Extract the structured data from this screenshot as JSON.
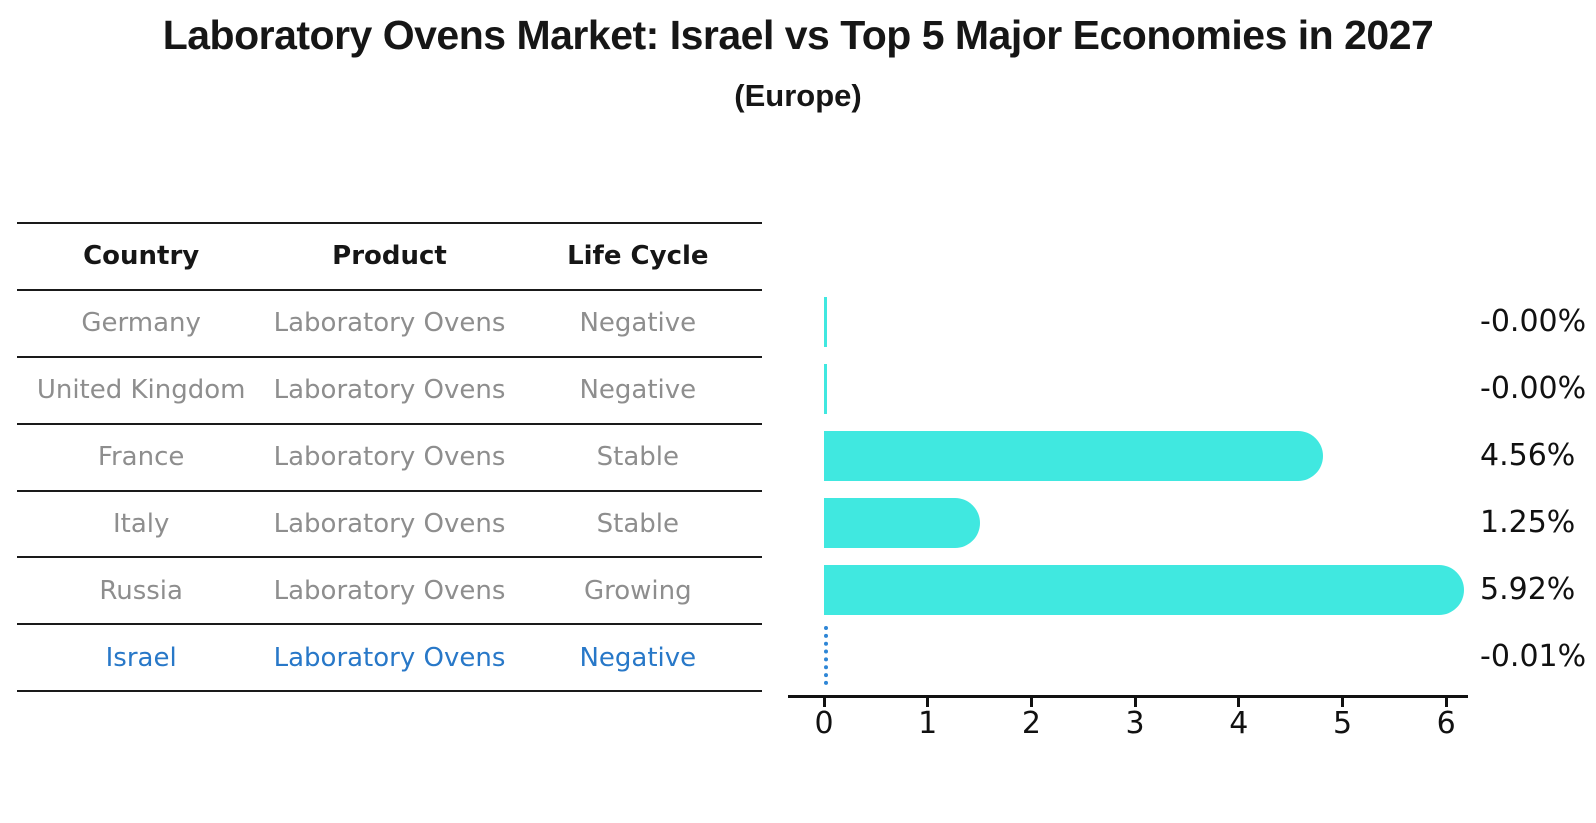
{
  "title": "Laboratory Ovens Market: Israel vs Top 5 Major Economies in 2027",
  "subtitle": "(Europe)",
  "colors": {
    "bar": "#40e8e0",
    "highlight_blue": "#2878c8",
    "table_text_gray": "#8e8e8e",
    "text_black": "#161616"
  },
  "table": {
    "headers": [
      "Country",
      "Product",
      "Life Cycle"
    ],
    "rows": [
      {
        "country": "Germany",
        "product": "Laboratory Ovens",
        "life_cycle": "Negative",
        "highlight": false
      },
      {
        "country": "United Kingdom",
        "product": "Laboratory Ovens",
        "life_cycle": "Negative",
        "highlight": false
      },
      {
        "country": "France",
        "product": "Laboratory Ovens",
        "life_cycle": "Stable",
        "highlight": false
      },
      {
        "country": "Italy",
        "product": "Laboratory Ovens",
        "life_cycle": "Stable",
        "highlight": false
      },
      {
        "country": "Russia",
        "product": "Laboratory Ovens",
        "life_cycle": "Growing",
        "highlight": false
      },
      {
        "country": "Israel",
        "product": "Laboratory Ovens",
        "life_cycle": "Negative",
        "highlight": true
      }
    ]
  },
  "chart_data": {
    "type": "bar",
    "orientation": "horizontal",
    "title": "Laboratory Ovens Market: Israel vs Top 5 Major Economies in 2027",
    "subtitle": "(Europe)",
    "categories": [
      "Germany",
      "United Kingdom",
      "France",
      "Italy",
      "Russia",
      "Israel"
    ],
    "values": [
      -0.0,
      -0.0,
      4.56,
      1.25,
      5.92,
      -0.01
    ],
    "value_labels": [
      "-0.00%",
      "-0.00%",
      "4.56%",
      "1.25%",
      "5.92%",
      "-0.01%"
    ],
    "unit": "%",
    "xlabel": "",
    "ylabel": "",
    "xlim": [
      0,
      6.3
    ],
    "x_ticks": [
      0,
      1,
      2,
      3,
      4,
      5,
      6
    ],
    "grid": false,
    "legend": false,
    "highlight_index": 5
  }
}
